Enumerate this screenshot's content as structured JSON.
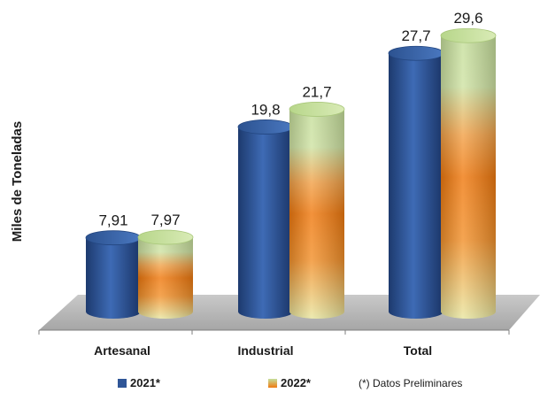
{
  "chart_data": {
    "type": "bar",
    "ylabel": "Miles de Toneladas",
    "categories": [
      "Artesanal",
      "Industrial",
      "Total"
    ],
    "series": [
      {
        "name": "2021*",
        "values": [
          7.91,
          19.8,
          27.7
        ],
        "labels": [
          "7,91",
          "19,8",
          "27,7"
        ],
        "color": "#2f5597"
      },
      {
        "name": "2022*",
        "values": [
          7.97,
          21.7,
          29.6
        ],
        "labels": [
          "7,97",
          "21,7",
          "29,6"
        ],
        "color": "#f07a10"
      }
    ],
    "ylim": [
      0,
      30
    ],
    "note": "(*) Datos Preliminares",
    "grid": false,
    "legend_position": "bottom",
    "colors": {
      "floor": "#bfbfbf",
      "blue": "#2f5597",
      "orange": "#f07a10",
      "green": "#c6e0a0"
    }
  }
}
